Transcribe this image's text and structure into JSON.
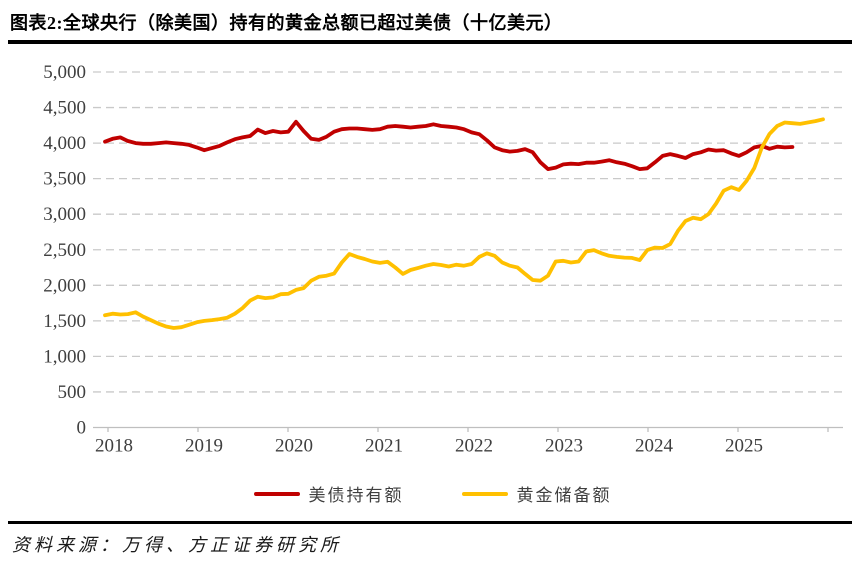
{
  "title": "图表2:全球央行（除美国）持有的黄金总额已超过美债（十亿美元）",
  "source": "资料来源：万得、方正证券研究所",
  "legend": {
    "items": [
      {
        "label": "美债持有额",
        "color": "#C00000"
      },
      {
        "label": "黄金储备额",
        "color": "#FFC000"
      }
    ]
  },
  "colors": {
    "treasury_line": "#C00000",
    "gold_line": "#FFC000",
    "gridline": "#C9C9C9",
    "axis": "#BFBFBF",
    "tick_text": "#3F3F3F"
  },
  "chart_data": {
    "type": "line",
    "title": "图表2:全球央行（除美国）持有的黄金总额已超过美债（十亿美元）",
    "unit": "十亿美元",
    "xlabel": "",
    "ylabel": "",
    "ylim": [
      0,
      5000
    ],
    "y_ticks": [
      0,
      500,
      1000,
      1500,
      2000,
      2500,
      3000,
      3500,
      4000,
      4500,
      5000
    ],
    "y_tick_labels": [
      "0",
      "500",
      "1,000",
      "1,500",
      "2,000",
      "2,500",
      "3,000",
      "3,500",
      "4,000",
      "4,500",
      "5,000"
    ],
    "x_tick_labels": [
      "2018",
      "2019",
      "2020",
      "2021",
      "2022",
      "2023",
      "2024",
      "2025"
    ],
    "grid": "horizontal-dashed",
    "legend_position": "bottom",
    "x_start": "2018-01",
    "x_freq": "monthly",
    "series": [
      {
        "id": "treasury",
        "name": "美债持有额",
        "color": "#C00000",
        "x_end": "2025-07",
        "values": [
          4020,
          4060,
          4080,
          4030,
          4000,
          3990,
          3990,
          4000,
          4010,
          4000,
          3990,
          3975,
          3940,
          3900,
          3930,
          3960,
          4010,
          4055,
          4080,
          4100,
          4190,
          4140,
          4170,
          4150,
          4160,
          4300,
          4170,
          4060,
          4045,
          4090,
          4160,
          4195,
          4205,
          4205,
          4195,
          4185,
          4195,
          4230,
          4240,
          4230,
          4220,
          4230,
          4240,
          4265,
          4240,
          4230,
          4220,
          4195,
          4150,
          4125,
          4040,
          3940,
          3900,
          3880,
          3890,
          3915,
          3870,
          3730,
          3635,
          3655,
          3700,
          3710,
          3705,
          3725,
          3725,
          3740,
          3760,
          3730,
          3710,
          3675,
          3635,
          3645,
          3730,
          3820,
          3845,
          3820,
          3790,
          3845,
          3870,
          3910,
          3895,
          3900,
          3855,
          3820,
          3870,
          3940,
          3960,
          3920,
          3950,
          3940,
          3945
        ]
      },
      {
        "id": "gold",
        "name": "黄金储备额",
        "color": "#FFC000",
        "x_end": "2025-11",
        "values": [
          1580,
          1600,
          1590,
          1595,
          1620,
          1560,
          1510,
          1460,
          1420,
          1400,
          1410,
          1445,
          1480,
          1500,
          1510,
          1525,
          1545,
          1600,
          1680,
          1785,
          1840,
          1820,
          1830,
          1875,
          1880,
          1935,
          1960,
          2065,
          2120,
          2135,
          2165,
          2320,
          2440,
          2400,
          2370,
          2335,
          2315,
          2330,
          2250,
          2160,
          2215,
          2245,
          2275,
          2300,
          2285,
          2265,
          2290,
          2275,
          2300,
          2400,
          2450,
          2415,
          2320,
          2275,
          2250,
          2160,
          2075,
          2065,
          2135,
          2335,
          2345,
          2320,
          2335,
          2475,
          2495,
          2450,
          2415,
          2400,
          2390,
          2385,
          2355,
          2495,
          2530,
          2525,
          2580,
          2765,
          2905,
          2950,
          2930,
          3000,
          3150,
          3330,
          3380,
          3340,
          3470,
          3650,
          3940,
          4130,
          4240,
          4290,
          4280,
          4270,
          4290,
          4310,
          4335
        ]
      }
    ]
  }
}
